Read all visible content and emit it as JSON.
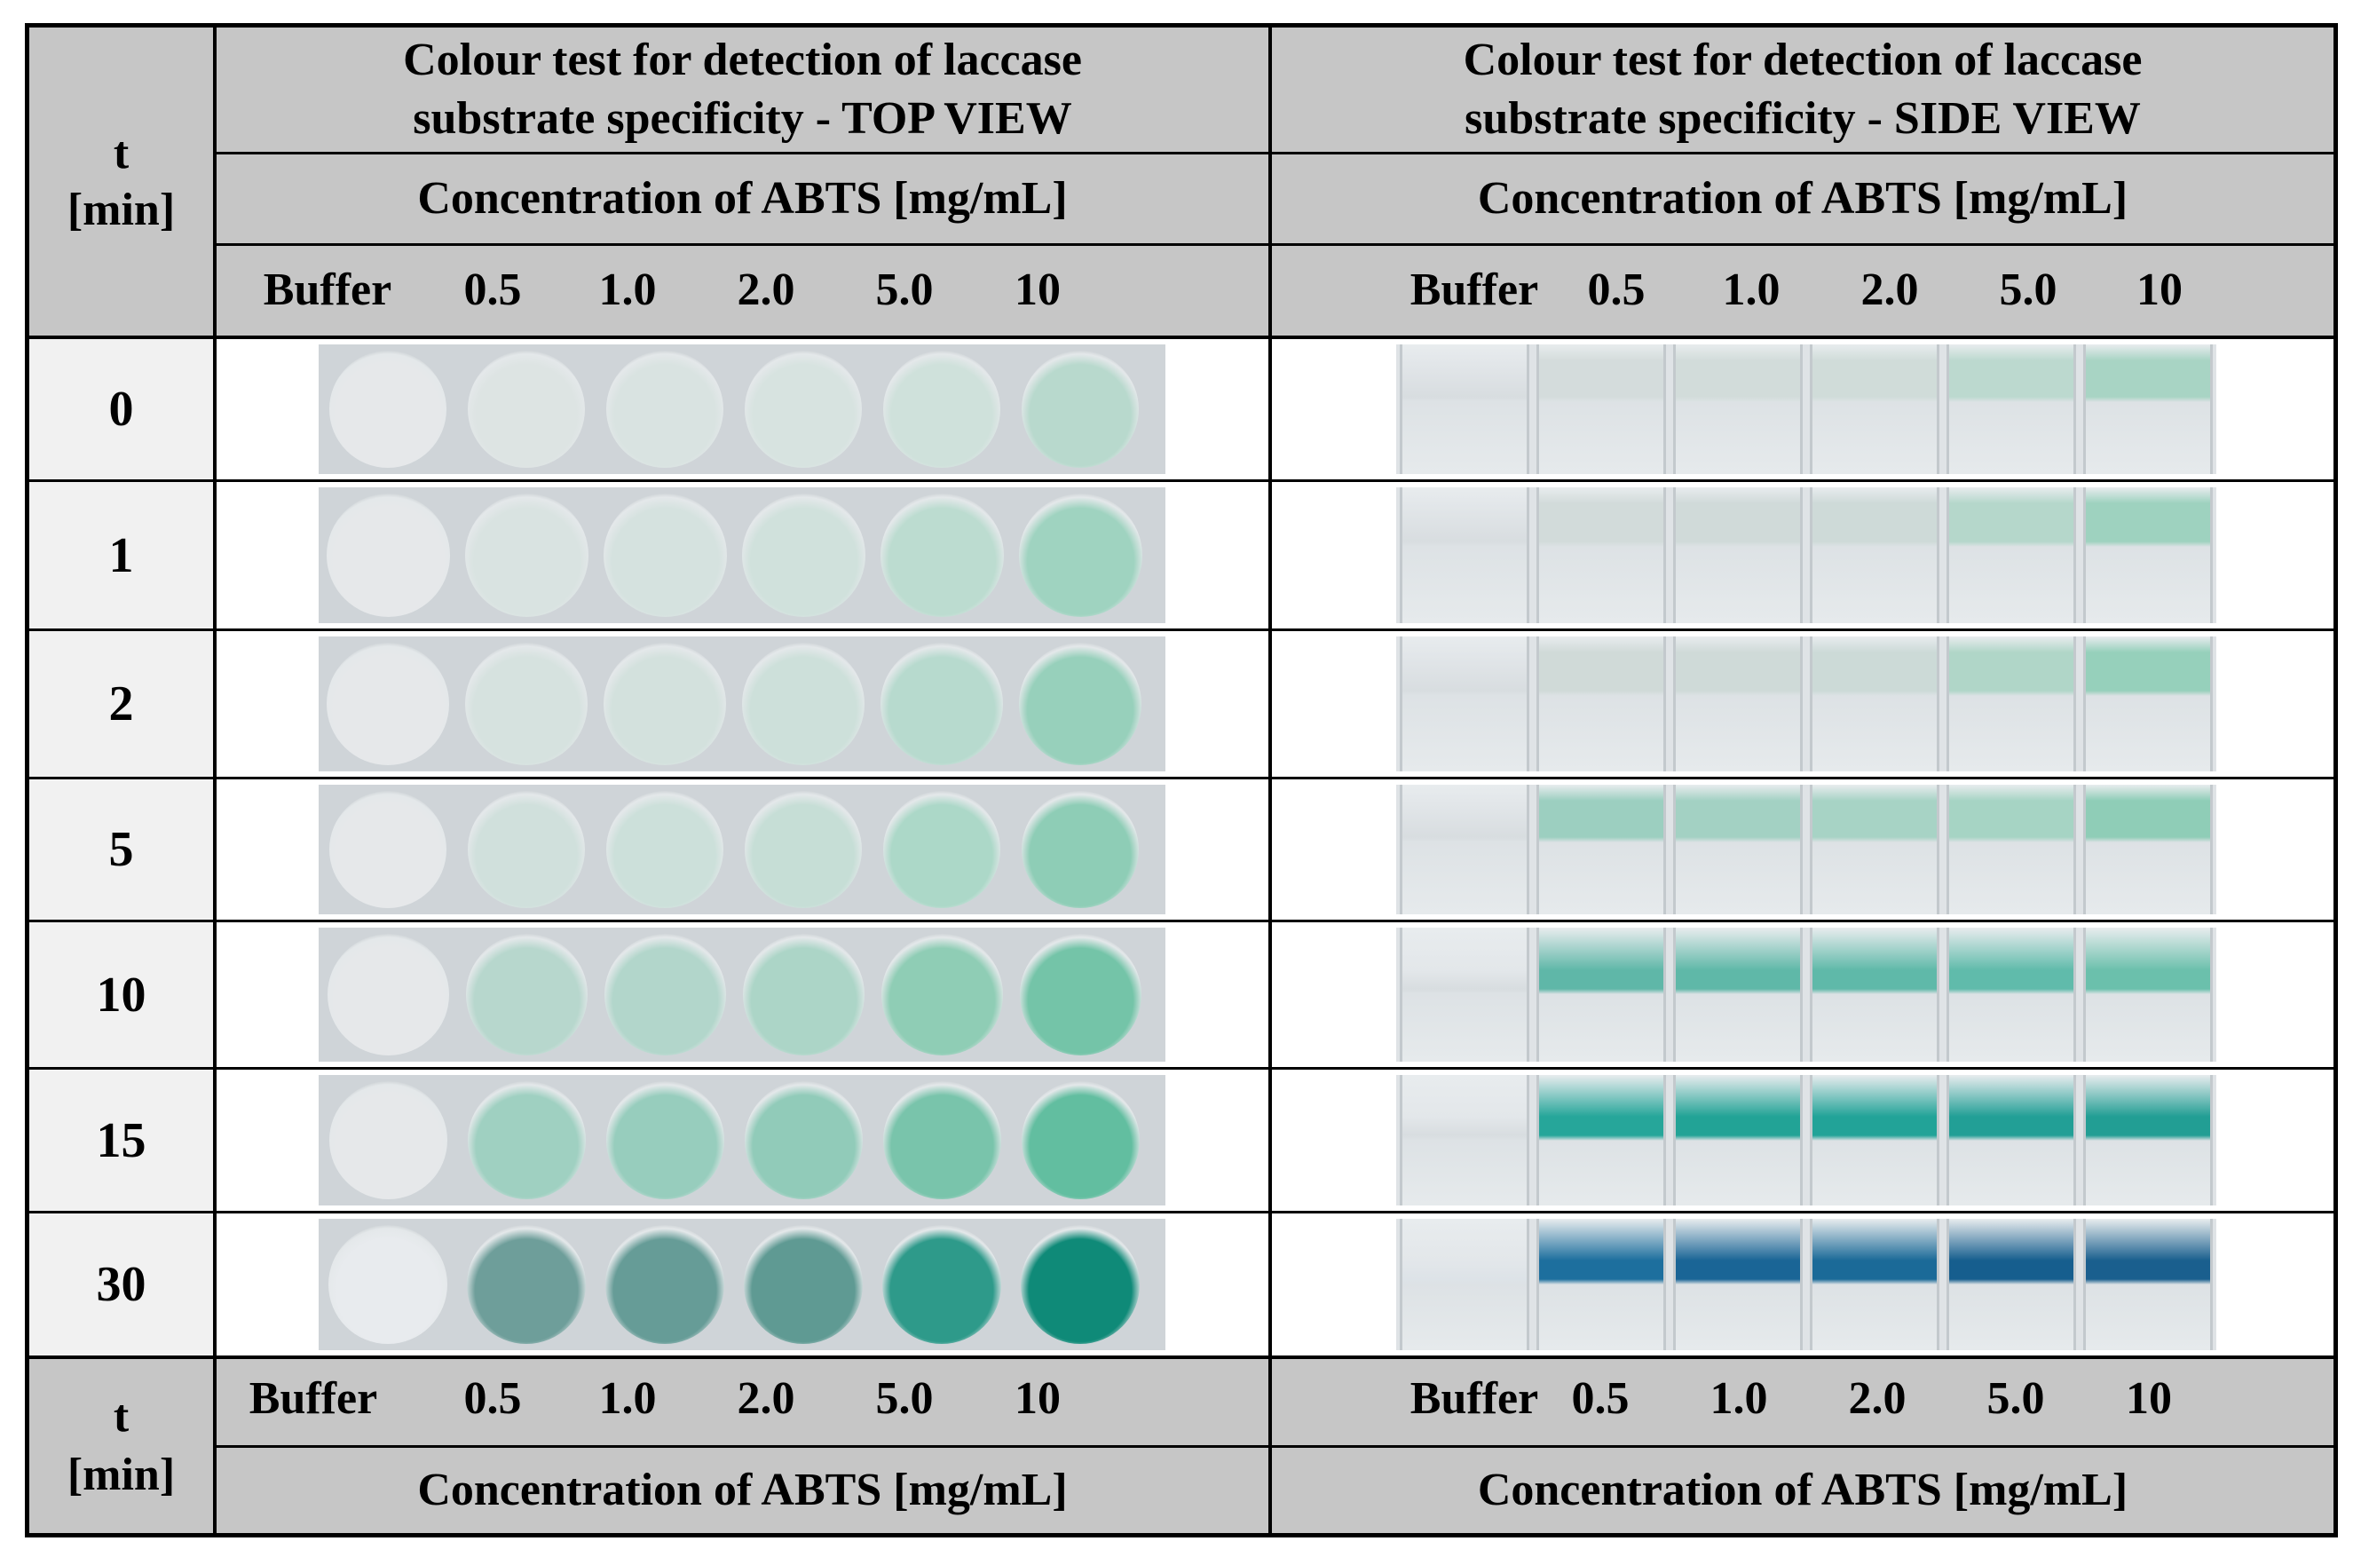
{
  "top_view": {
    "title_line1": "Colour test for detection of laccase",
    "title_line2": "substrate specificity - TOP VIEW",
    "concentration_header": "Concentration of ABTS [mg/mL]",
    "columns": [
      "Buffer",
      "0.5",
      "1.0",
      "2.0",
      "5.0",
      "10"
    ]
  },
  "side_view": {
    "title_line1": "Colour test for detection of laccase",
    "title_line2": "substrate specificity - SIDE VIEW",
    "concentration_header": "Concentration of ABTS [mg/mL]",
    "columns": [
      "Buffer",
      "0.5",
      "1.0",
      "2.0",
      "5.0",
      "10"
    ]
  },
  "time_header": {
    "line1": "t",
    "line2": "[min]"
  },
  "footer": {
    "time_line1": "t",
    "time_line2": "[min]",
    "columns_left": [
      "Buffer",
      "0.5",
      "1.0",
      "2.0",
      "5.0",
      "10"
    ],
    "columns_right": [
      "Buffer",
      "0.5",
      "1.0",
      "2.0",
      "5.0",
      "10"
    ],
    "concentration_left": "Concentration of ABTS [mg/mL]",
    "concentration_right": "Concentration of ABTS [mg/mL]"
  },
  "rows": [
    {
      "t": "0",
      "top_colors": [
        "#e6e8ea",
        "#dde4e3",
        "#d9e3e1",
        "#d7e3e0",
        "#cfe1db",
        "#b8d9cd"
      ],
      "side_colors": [
        "#d8dde0",
        "#d4dcdc",
        "#d2dcda",
        "#d0dcd9",
        "#bcd9cf",
        "#a8d4c4"
      ]
    },
    {
      "t": "1",
      "top_colors": [
        "#e6e8ea",
        "#d9e3e1",
        "#d5e2df",
        "#d0e1dc",
        "#bcdcd0",
        "#9fd3c0"
      ],
      "side_colors": [
        "#d8dde0",
        "#d2dbda",
        "#d0dad9",
        "#cedad8",
        "#b5d7cb",
        "#9ed2bf"
      ]
    },
    {
      "t": "2",
      "top_colors": [
        "#e6e8ea",
        "#d6e2df",
        "#d3e1dd",
        "#cde0da",
        "#b7dace",
        "#97d0bb"
      ],
      "side_colors": [
        "#d8dde0",
        "#d0dad8",
        "#cfdad8",
        "#ccdad7",
        "#b0d6c8",
        "#96d0bb"
      ]
    },
    {
      "t": "5",
      "top_colors": [
        "#e6e8ea",
        "#d0e0dc",
        "#cce0da",
        "#c6ded6",
        "#acd8c8",
        "#8ecdb6"
      ],
      "side_colors": [
        "#d8dde0",
        "#9ccfc0",
        "#a3d1c3",
        "#a7d3c5",
        "#a6d4c4",
        "#8fcdb7"
      ]
    },
    {
      "t": "10",
      "top_colors": [
        "#e6e8ea",
        "#b7d7cd",
        "#b2d6cb",
        "#acd5c7",
        "#8fcdb5",
        "#74c4a8"
      ],
      "side_colors": [
        "#d8dde0",
        "#5fb7a8",
        "#5fb8a8",
        "#5fb9a9",
        "#60bbab",
        "#6bc0ac"
      ]
    },
    {
      "t": "15",
      "top_colors": [
        "#e6e8ea",
        "#9fd0c1",
        "#97cdbd",
        "#91cbb9",
        "#79c4ab",
        "#62bea0"
      ],
      "side_colors": [
        "#d8dde0",
        "#26a69a",
        "#22a396",
        "#22a398",
        "#229f96",
        "#229e94"
      ]
    },
    {
      "t": "30",
      "top_colors": [
        "#e8ebee",
        "#6e9e9a",
        "#669c97",
        "#5f9a93",
        "#2e9a8a",
        "#0f8a78"
      ],
      "side_colors": [
        "#dde3e8",
        "#1d6f9e",
        "#1a6596",
        "#1b6a98",
        "#165e8e",
        "#1a5f8e"
      ]
    }
  ]
}
